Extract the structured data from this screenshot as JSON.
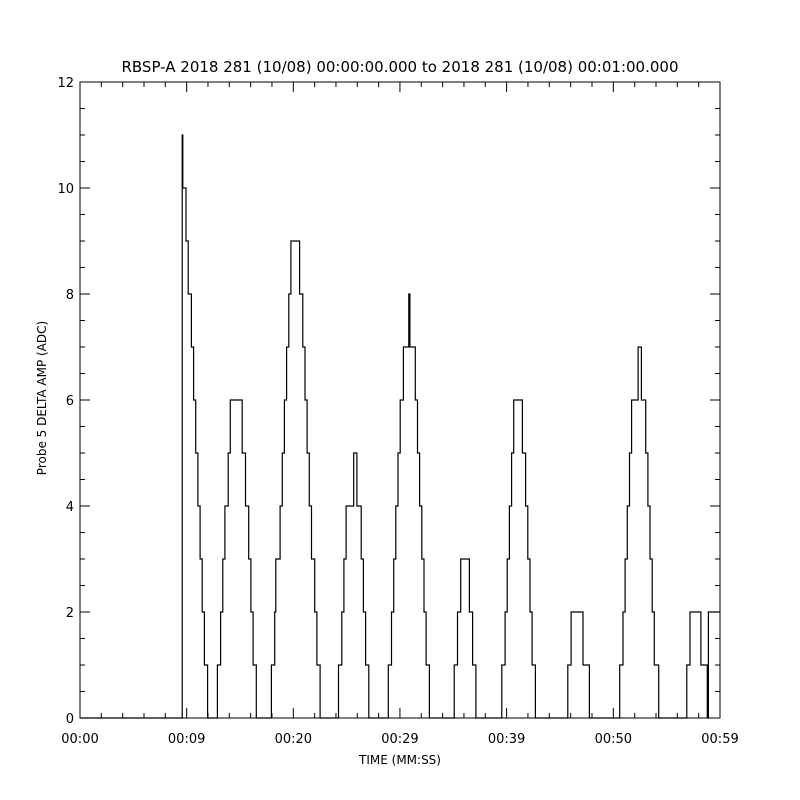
{
  "chart_data": {
    "type": "line",
    "title": "RBSP-A 2018 281 (10/08) 00:00:00.000 to 2018 281 (10/08) 00:01:00.000",
    "xlabel": "TIME (MM:SS)",
    "ylabel": "Probe 5 DELTA AMP (ADC)",
    "xlim_seconds": [
      0,
      59.17
    ],
    "ylim": [
      0,
      12
    ],
    "x_ticks": [
      {
        "value": 0,
        "label": "00:00"
      },
      {
        "value": 9.86,
        "label": "00:09"
      },
      {
        "value": 19.72,
        "label": "00:20"
      },
      {
        "value": 29.58,
        "label": "00:29"
      },
      {
        "value": 39.44,
        "label": "00:39"
      },
      {
        "value": 49.31,
        "label": "00:50"
      },
      {
        "value": 59.17,
        "label": "00:59"
      }
    ],
    "y_ticks": [
      0,
      2,
      4,
      6,
      8,
      10,
      12
    ],
    "x_minor_ticks_per_major": 5,
    "y_minor_ticks_per_major": 4,
    "grid": false,
    "line_color": "#000000",
    "series": [
      {
        "style": "step",
        "points": [
          [
            0.0,
            0
          ],
          [
            9.45,
            0
          ],
          [
            9.45,
            11
          ],
          [
            9.5,
            11
          ],
          [
            9.5,
            10
          ],
          [
            9.8,
            10
          ],
          [
            9.8,
            9
          ],
          [
            10.0,
            9
          ],
          [
            10.0,
            8
          ],
          [
            10.3,
            8
          ],
          [
            10.3,
            7
          ],
          [
            10.5,
            7
          ],
          [
            10.5,
            6
          ],
          [
            10.7,
            6
          ],
          [
            10.7,
            5
          ],
          [
            10.9,
            5
          ],
          [
            10.9,
            4
          ],
          [
            11.1,
            4
          ],
          [
            11.1,
            3
          ],
          [
            11.3,
            3
          ],
          [
            11.3,
            2
          ],
          [
            11.5,
            2
          ],
          [
            11.5,
            1
          ],
          [
            11.8,
            1
          ],
          [
            11.8,
            0
          ],
          [
            12.7,
            0
          ],
          [
            12.7,
            1
          ],
          [
            13.0,
            1
          ],
          [
            13.0,
            2
          ],
          [
            13.2,
            2
          ],
          [
            13.2,
            3
          ],
          [
            13.4,
            3
          ],
          [
            13.4,
            4
          ],
          [
            13.7,
            4
          ],
          [
            13.7,
            5
          ],
          [
            13.9,
            5
          ],
          [
            13.9,
            6
          ],
          [
            15.0,
            6
          ],
          [
            15.0,
            5
          ],
          [
            15.3,
            5
          ],
          [
            15.3,
            4
          ],
          [
            15.6,
            4
          ],
          [
            15.6,
            3
          ],
          [
            15.8,
            3
          ],
          [
            15.8,
            2
          ],
          [
            16.0,
            2
          ],
          [
            16.0,
            1
          ],
          [
            16.3,
            1
          ],
          [
            16.3,
            0
          ],
          [
            17.7,
            0
          ],
          [
            17.7,
            1
          ],
          [
            18.0,
            1
          ],
          [
            18.0,
            2
          ],
          [
            18.1,
            2
          ],
          [
            18.1,
            3
          ],
          [
            18.5,
            3
          ],
          [
            18.5,
            4
          ],
          [
            18.7,
            4
          ],
          [
            18.7,
            5
          ],
          [
            18.9,
            5
          ],
          [
            18.9,
            6
          ],
          [
            19.1,
            6
          ],
          [
            19.1,
            7
          ],
          [
            19.3,
            7
          ],
          [
            19.3,
            8
          ],
          [
            19.5,
            8
          ],
          [
            19.5,
            9
          ],
          [
            20.3,
            9
          ],
          [
            20.3,
            8
          ],
          [
            20.6,
            8
          ],
          [
            20.6,
            7
          ],
          [
            20.8,
            7
          ],
          [
            20.8,
            6
          ],
          [
            21.0,
            6
          ],
          [
            21.0,
            5
          ],
          [
            21.2,
            5
          ],
          [
            21.2,
            4
          ],
          [
            21.4,
            4
          ],
          [
            21.4,
            3
          ],
          [
            21.7,
            3
          ],
          [
            21.7,
            2
          ],
          [
            21.9,
            2
          ],
          [
            21.9,
            1
          ],
          [
            22.2,
            1
          ],
          [
            22.2,
            0
          ],
          [
            23.9,
            0
          ],
          [
            23.9,
            1
          ],
          [
            24.2,
            1
          ],
          [
            24.2,
            2
          ],
          [
            24.4,
            2
          ],
          [
            24.4,
            3
          ],
          [
            24.6,
            3
          ],
          [
            24.6,
            4
          ],
          [
            25.3,
            4
          ],
          [
            25.3,
            5
          ],
          [
            25.6,
            5
          ],
          [
            25.6,
            4
          ],
          [
            26.0,
            4
          ],
          [
            26.0,
            3
          ],
          [
            26.2,
            3
          ],
          [
            26.2,
            2
          ],
          [
            26.4,
            2
          ],
          [
            26.4,
            1
          ],
          [
            26.7,
            1
          ],
          [
            26.7,
            0
          ],
          [
            28.5,
            0
          ],
          [
            28.5,
            1
          ],
          [
            28.8,
            1
          ],
          [
            28.8,
            2
          ],
          [
            29.0,
            2
          ],
          [
            29.0,
            3
          ],
          [
            29.2,
            3
          ],
          [
            29.2,
            4
          ],
          [
            29.4,
            4
          ],
          [
            29.4,
            5
          ],
          [
            29.6,
            5
          ],
          [
            29.6,
            6
          ],
          [
            29.9,
            6
          ],
          [
            29.9,
            7
          ],
          [
            30.4,
            7
          ],
          [
            30.4,
            8
          ],
          [
            30.5,
            8
          ],
          [
            30.5,
            7
          ],
          [
            31.0,
            7
          ],
          [
            31.0,
            6
          ],
          [
            31.2,
            6
          ],
          [
            31.2,
            5
          ],
          [
            31.4,
            5
          ],
          [
            31.4,
            4
          ],
          [
            31.6,
            4
          ],
          [
            31.6,
            3
          ],
          [
            31.8,
            3
          ],
          [
            31.8,
            2
          ],
          [
            32.0,
            2
          ],
          [
            32.0,
            1
          ],
          [
            32.3,
            1
          ],
          [
            32.3,
            0
          ],
          [
            34.6,
            0
          ],
          [
            34.6,
            1
          ],
          [
            34.9,
            1
          ],
          [
            34.9,
            2
          ],
          [
            35.2,
            2
          ],
          [
            35.2,
            3
          ],
          [
            36.0,
            3
          ],
          [
            36.0,
            2
          ],
          [
            36.3,
            2
          ],
          [
            36.3,
            1
          ],
          [
            36.6,
            1
          ],
          [
            36.6,
            0
          ],
          [
            39.0,
            0
          ],
          [
            39.0,
            1
          ],
          [
            39.3,
            1
          ],
          [
            39.3,
            2
          ],
          [
            39.5,
            2
          ],
          [
            39.5,
            3
          ],
          [
            39.7,
            3
          ],
          [
            39.7,
            4
          ],
          [
            39.9,
            4
          ],
          [
            39.9,
            5
          ],
          [
            40.1,
            5
          ],
          [
            40.1,
            6
          ],
          [
            40.9,
            6
          ],
          [
            40.9,
            5
          ],
          [
            41.2,
            5
          ],
          [
            41.2,
            4
          ],
          [
            41.4,
            4
          ],
          [
            41.4,
            3
          ],
          [
            41.6,
            3
          ],
          [
            41.6,
            2
          ],
          [
            41.8,
            2
          ],
          [
            41.8,
            1
          ],
          [
            42.1,
            1
          ],
          [
            42.1,
            0
          ],
          [
            45.1,
            0
          ],
          [
            45.1,
            1
          ],
          [
            45.4,
            1
          ],
          [
            45.4,
            2
          ],
          [
            46.5,
            2
          ],
          [
            46.5,
            1
          ],
          [
            47.1,
            1
          ],
          [
            47.1,
            0
          ],
          [
            49.9,
            0
          ],
          [
            49.9,
            1
          ],
          [
            50.2,
            1
          ],
          [
            50.2,
            2
          ],
          [
            50.4,
            2
          ],
          [
            50.4,
            3
          ],
          [
            50.6,
            3
          ],
          [
            50.6,
            4
          ],
          [
            50.8,
            4
          ],
          [
            50.8,
            5
          ],
          [
            51.0,
            5
          ],
          [
            51.0,
            6
          ],
          [
            51.6,
            6
          ],
          [
            51.6,
            7
          ],
          [
            51.9,
            7
          ],
          [
            51.9,
            6
          ],
          [
            52.3,
            6
          ],
          [
            52.3,
            5
          ],
          [
            52.5,
            5
          ],
          [
            52.5,
            4
          ],
          [
            52.7,
            4
          ],
          [
            52.7,
            3
          ],
          [
            52.9,
            3
          ],
          [
            52.9,
            2
          ],
          [
            53.1,
            2
          ],
          [
            53.1,
            1
          ],
          [
            53.5,
            1
          ],
          [
            53.5,
            0
          ],
          [
            56.1,
            0
          ],
          [
            56.1,
            1
          ],
          [
            56.4,
            1
          ],
          [
            56.4,
            2
          ],
          [
            57.4,
            2
          ],
          [
            57.4,
            1
          ],
          [
            58.0,
            1
          ],
          [
            58.0,
            0
          ],
          [
            58.1,
            0
          ],
          [
            58.1,
            2
          ],
          [
            59.17,
            2
          ]
        ]
      }
    ]
  }
}
